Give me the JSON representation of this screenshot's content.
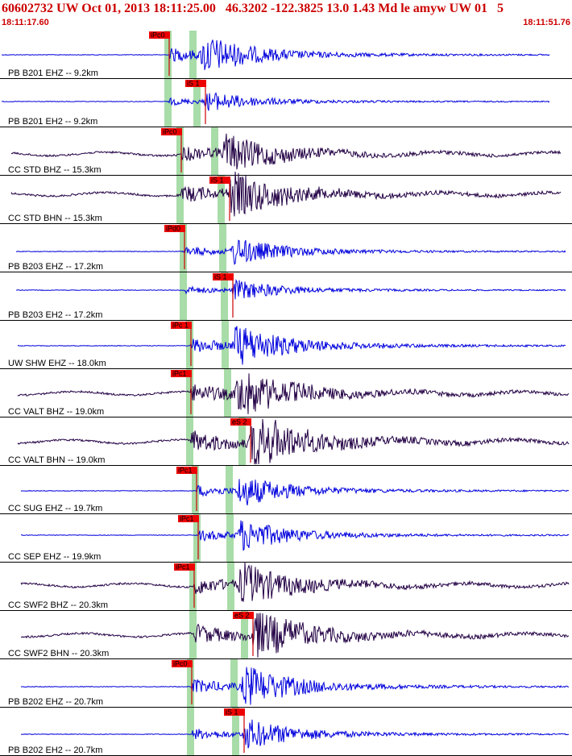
{
  "header": {
    "title": "60602732 UW Oct 01, 2013 18:11:25.00   46.3202 -122.3825 13.0 1.43 Md le amyw UW 01   5",
    "start_time": "18:11:17.60",
    "end_time": "18:11:51.76"
  },
  "colors": {
    "header_text": "#cc0000",
    "blue_trace": "#0000dd",
    "dark_trace": "#220044",
    "pick_flag": "#ee0000",
    "pick_line": "#cc0000",
    "green_band": "#a8dca8"
  },
  "chart_data": {
    "type": "line",
    "title": "60602732 UW Oct 01, 2013 18:11:25.00   46.3202 -122.3825 13.0 1.43 Md le amyw UW 01   5",
    "x_range_labels": [
      "18:11:17.60",
      "18:11:51.76"
    ],
    "traces": [
      {
        "label": "PB B201 EHZ -- 9.2km",
        "color": "blue",
        "pick": "iPc0",
        "pick_type": "P"
      },
      {
        "label": "PB B201 EH2 -- 9.2km",
        "color": "blue",
        "pick": "iS 1",
        "pick_type": "S"
      },
      {
        "label": "CC STD BHZ -- 15.3km",
        "color": "dark",
        "pick": "iPc0",
        "pick_type": "P"
      },
      {
        "label": "CC STD BHN -- 15.3km",
        "color": "dark",
        "pick": "iS 1",
        "pick_type": "S"
      },
      {
        "label": "PB B203 EHZ -- 17.2km",
        "color": "blue",
        "pick": "iPd0",
        "pick_type": "P"
      },
      {
        "label": "PB B203 EH2 -- 17.2km",
        "color": "blue",
        "pick": "iS 1",
        "pick_type": "S"
      },
      {
        "label": "UW SHW EHZ -- 18.0km",
        "color": "blue",
        "pick": "iPc 1",
        "pick_type": "P"
      },
      {
        "label": "CC VALT BHZ -- 19.0km",
        "color": "dark",
        "pick": "iPc1",
        "pick_type": "P"
      },
      {
        "label": "CC VALT BHN -- 19.0km",
        "color": "dark",
        "pick": "eS 2",
        "pick_type": "S"
      },
      {
        "label": "CC SUG EHZ -- 19.7km",
        "color": "blue",
        "pick": "iPc1",
        "pick_type": "P"
      },
      {
        "label": "CC SEP EHZ -- 19.9km",
        "color": "blue",
        "pick": "iPc1",
        "pick_type": "P"
      },
      {
        "label": "CC SWF2 BHZ -- 20.3km",
        "color": "dark",
        "pick": "iPc1",
        "pick_type": "P"
      },
      {
        "label": "CC SWF2 BHN -- 20.3km",
        "color": "dark",
        "pick": "eS 2",
        "pick_type": "S"
      },
      {
        "label": "PB B202 EHZ -- 20.7km",
        "color": "blue",
        "pick": "iPc0",
        "pick_type": "P"
      },
      {
        "label": "PB B202 EH2 -- 20.7km",
        "color": "blue",
        "pick": "iS 1",
        "pick_type": "S"
      }
    ]
  }
}
